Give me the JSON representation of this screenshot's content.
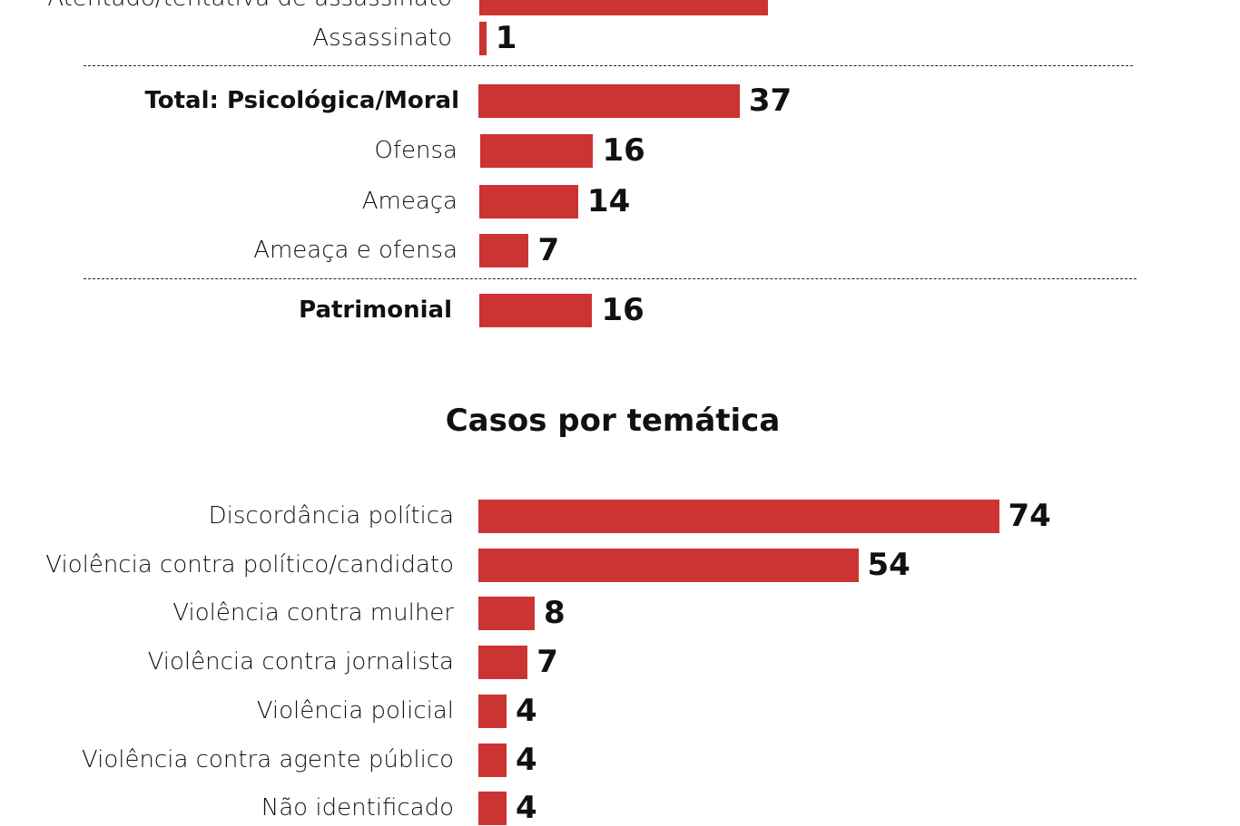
{
  "accent_color": "#cc3333",
  "chart_data": [
    {
      "type": "bar",
      "orientation": "horizontal",
      "title": "",
      "categories": [
        "Atentado/tentativa de assassinato",
        "Assassinato",
        "Total: Psicológica/Moral",
        "Ofensa",
        "Ameaça",
        "Ameaça e ofensa",
        "Patrimonial"
      ],
      "values": [
        null,
        1,
        37,
        16,
        14,
        7,
        16
      ],
      "bold_categories": [
        "Total: Psicológica/Moral",
        "Patrimonial"
      ],
      "groups": [
        [
          "Atentado/tentativa de assassinato",
          "Assassinato"
        ],
        [
          "Total: Psicológica/Moral",
          "Ofensa",
          "Ameaça",
          "Ameaça e ofensa"
        ],
        [
          "Patrimonial"
        ]
      ],
      "note": "first row cropped at top edge; its value label is not visible"
    },
    {
      "type": "bar",
      "orientation": "horizontal",
      "title": "Casos por temática",
      "categories": [
        "Discordância política",
        "Violência contra político/candidato",
        "Violência contra mulher",
        "Violência contra jornalista",
        "Violência policial",
        "Violência contra agente público",
        "Não identificado"
      ],
      "values": [
        74,
        54,
        8,
        7,
        4,
        4,
        4
      ]
    }
  ],
  "labels": {
    "top_cut": "Atentado/tentativa de assassinato",
    "assassinato": "Assassinato",
    "total_psico": "Total: Psicológica/Moral",
    "ofensa": "Ofensa",
    "ameaca": "Ameaça",
    "ameaca_ofensa": "Ameaça e ofensa",
    "patrimonial": "Patrimonial",
    "tematica_title": "Casos por temática"
  },
  "values_text": {
    "assassinato": "1",
    "total_psico": "37",
    "ofensa": "16",
    "ameaca": "14",
    "ameaca_ofensa": "7",
    "patrimonial": "16",
    "t0": "74",
    "t1": "54",
    "t2": "8",
    "t3": "7",
    "t4": "4",
    "t5": "4",
    "t6": "4"
  }
}
